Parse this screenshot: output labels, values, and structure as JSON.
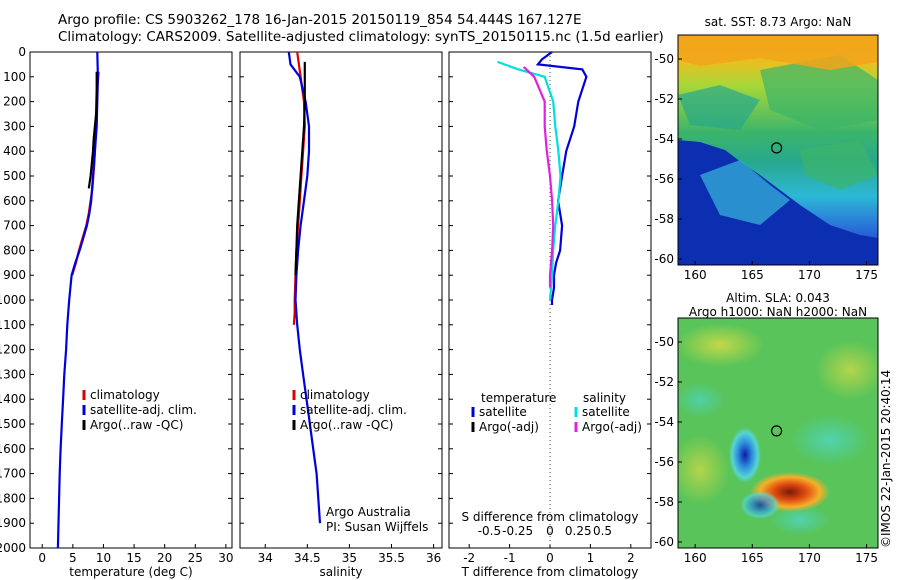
{
  "header": {
    "line1": "Argo profile: CS 5903262_178 16-Jan-2015 20150119_854 54.444S 167.127E",
    "line2": "Climatology: CARS2009. Satellite-adjusted climatology: synTS_20150115.nc (1.5d earlier)"
  },
  "colors": {
    "climatology": "#e00000",
    "satellite": "#0000dd",
    "argo": "#000000",
    "sat_salinity": "#00e0e0",
    "argo_salinity": "#e020e0",
    "zero_line": "#555555"
  },
  "chart_data": [
    {
      "type": "line",
      "panel": "temperature",
      "xlabel": "temperature (deg C)",
      "xlim": [
        -2,
        31
      ],
      "xticks": [
        "0",
        "5",
        "10",
        "15",
        "20",
        "25",
        "30"
      ],
      "ylim": [
        2000,
        0
      ],
      "yticks": [
        "0",
        "100",
        "200",
        "300",
        "400",
        "500",
        "600",
        "700",
        "800",
        "900",
        "1000",
        "1100",
        "1200",
        "1300",
        "1400",
        "1500",
        "1600",
        "1700",
        "1800",
        "1900",
        "2000"
      ],
      "legend": [
        "climatology",
        "satellite-adj. clim.",
        "Argo(..raw -QC)"
      ],
      "series": [
        {
          "name": "climatology",
          "color_key": "climatology",
          "x": [
            9.2,
            9.0,
            8.9,
            8.7,
            8.5,
            8.2,
            7.9,
            7.6,
            7.2,
            6.6,
            6.0,
            5.5,
            4.9
          ],
          "y": [
            80,
            150,
            250,
            350,
            450,
            550,
            600,
            650,
            700,
            750,
            800,
            850,
            900
          ]
        },
        {
          "name": "satellite-adj. clim.",
          "color_key": "satellite",
          "x": [
            9.0,
            9.1,
            9.0,
            8.9,
            8.6,
            8.3,
            8.0,
            7.7,
            7.3,
            6.7,
            6.1,
            5.4,
            4.8,
            4.4,
            4.1,
            3.9,
            3.6,
            3.4,
            3.2,
            3.0,
            2.85,
            2.75,
            2.65,
            2.6,
            2.55
          ],
          "y": [
            0,
            100,
            200,
            300,
            400,
            500,
            600,
            650,
            700,
            750,
            800,
            850,
            900,
            1000,
            1100,
            1200,
            1300,
            1400,
            1500,
            1600,
            1700,
            1800,
            1900,
            1950,
            2000
          ]
        },
        {
          "name": "Argo(..raw -QC)",
          "color_key": "argo",
          "x": [
            8.9,
            8.9,
            8.8,
            8.6,
            8.4,
            8.3,
            8.1,
            7.9,
            7.6
          ],
          "y": [
            80,
            150,
            250,
            300,
            350,
            400,
            450,
            500,
            550
          ]
        }
      ]
    },
    {
      "type": "line",
      "panel": "salinity",
      "xlabel": "salinity",
      "xlim": [
        33.7,
        36.1
      ],
      "xticks": [
        "34",
        "34.5",
        "35",
        "35.5",
        "36"
      ],
      "ylim": [
        2000,
        0
      ],
      "legend": [
        "climatology",
        "satellite-adj. clim.",
        "Argo(..raw -QC)"
      ],
      "annotation": [
        "Argo Australia",
        "PI: Susan Wijffels"
      ],
      "series": [
        {
          "name": "climatology",
          "color_key": "climatology",
          "x": [
            34.38,
            34.42,
            34.46,
            34.47,
            34.45,
            34.43,
            34.41,
            34.39,
            34.37,
            34.36,
            34.35,
            34.35,
            34.34
          ],
          "y": [
            0,
            100,
            200,
            300,
            400,
            500,
            600,
            700,
            800,
            900,
            1000,
            1050,
            1100
          ]
        },
        {
          "name": "satellite-adj. clim.",
          "color_key": "satellite",
          "x": [
            34.28,
            34.3,
            34.41,
            34.48,
            34.52,
            34.52,
            34.5,
            34.46,
            34.42,
            34.39,
            34.37,
            34.36,
            34.38,
            34.41,
            34.45,
            34.49,
            34.53,
            34.57,
            34.61,
            34.63,
            34.65
          ],
          "y": [
            0,
            50,
            100,
            200,
            300,
            400,
            500,
            600,
            700,
            800,
            900,
            1000,
            1100,
            1200,
            1300,
            1400,
            1500,
            1600,
            1700,
            1800,
            1900
          ]
        },
        {
          "name": "Argo(..raw -QC)",
          "color_key": "argo",
          "x": [
            34.47,
            34.47,
            34.47,
            34.46,
            34.44,
            34.42,
            34.4,
            34.38,
            34.37,
            34.36
          ],
          "y": [
            40,
            100,
            200,
            300,
            400,
            500,
            600,
            700,
            800,
            900
          ]
        }
      ]
    },
    {
      "type": "line",
      "panel": "difference",
      "xlabel": "T difference from climatology",
      "xlabel2": "S difference from climatology",
      "xlim": [
        -2.5,
        2.5
      ],
      "xticks": [
        "-2",
        "-1",
        "0",
        "1",
        "2"
      ],
      "sticks": [
        "-0.5",
        "-0.25",
        "0",
        "0.25",
        "0.5"
      ],
      "ylim": [
        2000,
        0
      ],
      "legend_headers": [
        "temperature",
        "salinity"
      ],
      "legend": [
        "satellite",
        "Argo(-adj)",
        "satellite",
        "Argo(-adj)"
      ],
      "series": [
        {
          "name": "satellite",
          "color_key": "satellite",
          "quantity": "temperature",
          "x": [
            0.05,
            -0.2,
            -0.3,
            0.8,
            0.9,
            0.7,
            0.6,
            0.4,
            0.3,
            0.2,
            0.3,
            0.25,
            0.15,
            0.1,
            0.1,
            0.05,
            0.05
          ],
          "y": [
            0,
            30,
            50,
            70,
            100,
            200,
            300,
            400,
            500,
            600,
            700,
            800,
            850,
            900,
            950,
            1000,
            1020
          ]
        },
        {
          "name": "Argo(-adj)",
          "color_key": "argo",
          "quantity": "temperature",
          "x": [],
          "y": []
        },
        {
          "name": "satellite",
          "color_key": "sat_salinity",
          "quantity": "salinity",
          "x": [
            -0.5,
            -0.3,
            -0.05,
            0.03,
            0.05,
            0.08,
            0.1,
            0.08,
            0.05,
            0.03,
            0.02,
            0.0
          ],
          "y": [
            40,
            70,
            100,
            200,
            300,
            400,
            500,
            600,
            700,
            800,
            900,
            1000
          ]
        },
        {
          "name": "Argo(-adj)",
          "color_key": "argo_salinity",
          "quantity": "salinity",
          "x": [
            -0.25,
            -0.15,
            -0.05,
            -0.05,
            -0.03,
            0.0,
            0.02,
            0.03,
            0.02,
            0.0,
            0.0
          ],
          "y": [
            60,
            100,
            200,
            300,
            400,
            500,
            600,
            700,
            800,
            900,
            950
          ]
        }
      ]
    },
    {
      "type": "heatmap",
      "panel": "sst_map",
      "title": "sat. SST: 8.73 Argo: NaN",
      "xticks": [
        "160",
        "165",
        "170",
        "175"
      ],
      "yticks": [
        "-50",
        "-52",
        "-54",
        "-56",
        "-58",
        "-60"
      ],
      "xlim": [
        158.5,
        176
      ],
      "ylim": [
        -60.3,
        -48.8
      ],
      "marker": {
        "lon": 167.127,
        "lat": -54.444
      }
    },
    {
      "type": "heatmap",
      "panel": "sla_map",
      "title": "Altim. SLA: 0.043",
      "subtitle": "Argo h1000: NaN h2000: NaN",
      "xticks": [
        "160",
        "165",
        "170",
        "175"
      ],
      "yticks": [
        "-50",
        "-52",
        "-54",
        "-56",
        "-58",
        "-60"
      ],
      "xlim": [
        158.5,
        176
      ],
      "ylim": [
        -60.3,
        -48.8
      ],
      "marker": {
        "lon": 167.127,
        "lat": -54.444
      }
    }
  ],
  "footer": {
    "credit": "©IMOS 22-Jan-2015 20:40:14"
  }
}
